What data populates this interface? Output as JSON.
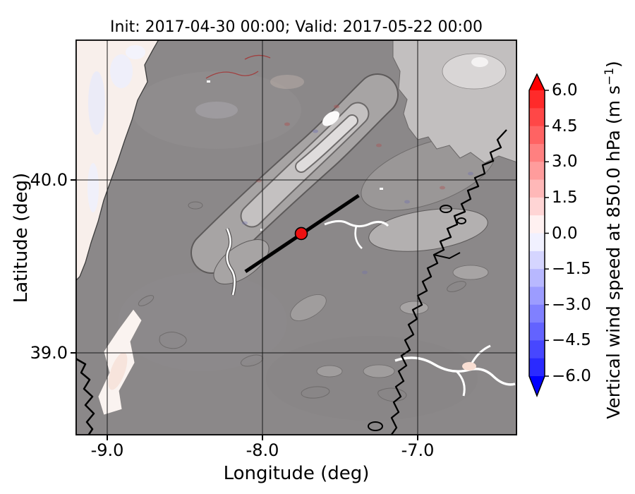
{
  "chart_data": {
    "type": "heatmap",
    "title": "Init: 2017-04-30 00:00; Valid: 2017-05-22 00:00",
    "xlabel": "Longitude (deg)",
    "ylabel": "Latitude (deg)",
    "x_ticks": [
      -9.0,
      -8.0,
      -7.0
    ],
    "x_tick_labels": [
      "-9.0",
      "-8.0",
      "-7.0"
    ],
    "y_ticks": [
      40.0,
      39.0
    ],
    "y_tick_labels": [
      "40.0",
      "39.0"
    ],
    "xlim": [
      -9.2,
      -6.36
    ],
    "ylim": [
      38.52,
      40.81
    ],
    "grid": true,
    "field": "vertical wind speed at 850.0 hPa",
    "units": "m s−1",
    "colorbar": {
      "label_main": "Vertical wind speed at 850.0 hPa (m s",
      "label_sup": "−1",
      "label_close": ")",
      "ticks": [
        6.0,
        4.5,
        3.0,
        1.5,
        0.0,
        -1.5,
        -3.0,
        -4.5,
        -6.0
      ],
      "tick_labels": [
        "6.0",
        "4.5",
        "3.0",
        "1.5",
        "0.0",
        "−1.5",
        "−3.0",
        "−4.5",
        "−6.0"
      ],
      "extend": "both",
      "over_color": "#ff0000",
      "under_color": "#0000ff",
      "segment_colors": [
        "#ff2a2a",
        "#ff4747",
        "#ff6363",
        "#ff8080",
        "#ff9c9c",
        "#ffb8b8",
        "#ffd5d5",
        "#fff1f1",
        "#f1f1ff",
        "#d5d5ff",
        "#b8b8ff",
        "#9c9cff",
        "#8080ff",
        "#6363ff",
        "#4747ff",
        "#2a2aff"
      ]
    },
    "overlays": {
      "cross_section_line": {
        "lon": [
          -8.11,
          -7.38
        ],
        "lat": [
          39.47,
          39.91
        ],
        "color": "#000000"
      },
      "marker": {
        "lon": -7.75,
        "lat": 39.69,
        "color": "#ee1111"
      }
    },
    "map_colors": {
      "land_base": "#8b8889",
      "ocean": "#f8efeb",
      "highland": "#c2bfbf",
      "peak": "#fbfafa"
    }
  }
}
